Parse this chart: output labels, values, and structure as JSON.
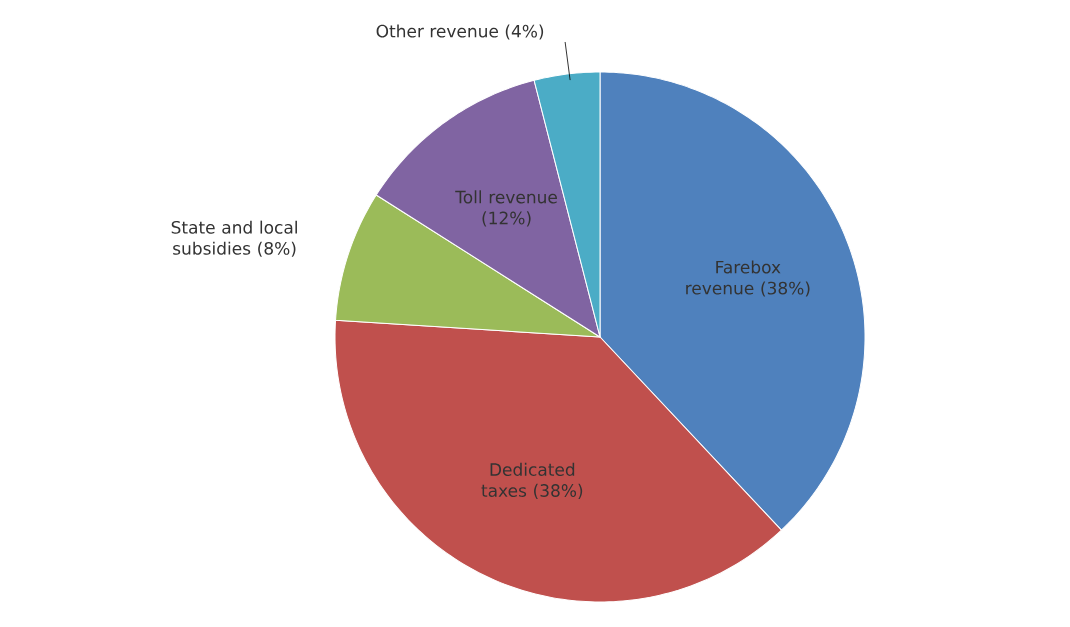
{
  "chart_data": {
    "type": "pie",
    "categories": [
      "Farebox revenue",
      "Dedicated taxes",
      "State and local subsidies",
      "Toll revenue",
      "Other revenue"
    ],
    "values": [
      38,
      38,
      8,
      12,
      4
    ],
    "value_labels": [
      "(38%)",
      "(38%)",
      "(8%)",
      "(12%)",
      "(4%)"
    ],
    "colors": [
      "#4f81bd",
      "#c0504d",
      "#9bbb59",
      "#8064a2",
      "#4bacc6"
    ]
  }
}
